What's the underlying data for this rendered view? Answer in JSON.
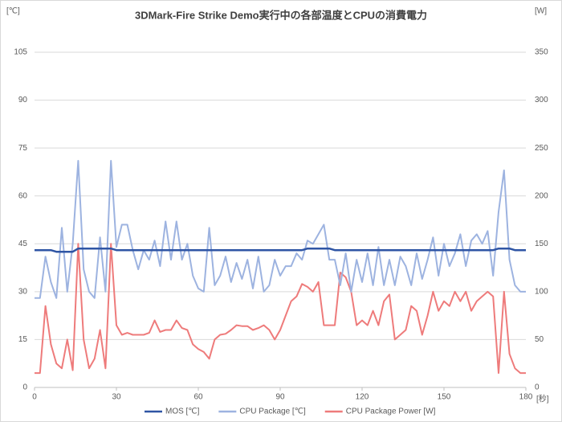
{
  "chart_data": {
    "type": "line",
    "title": "3DMark-Fire Strike Demo実行中の各部温度とCPUの消費電力",
    "ylabel": "[℃]",
    "y2label": "[W]",
    "xlabel": "[秒]",
    "x": [
      0,
      2,
      4,
      6,
      8,
      10,
      12,
      14,
      16,
      18,
      20,
      22,
      24,
      26,
      28,
      30,
      32,
      34,
      36,
      38,
      40,
      42,
      44,
      46,
      48,
      50,
      52,
      54,
      56,
      58,
      60,
      62,
      64,
      66,
      68,
      70,
      72,
      74,
      76,
      78,
      80,
      82,
      84,
      86,
      88,
      90,
      92,
      94,
      96,
      98,
      100,
      102,
      104,
      106,
      108,
      110,
      112,
      114,
      116,
      118,
      120,
      122,
      124,
      126,
      128,
      130,
      132,
      134,
      136,
      138,
      140,
      142,
      144,
      146,
      148,
      150,
      152,
      154,
      156,
      158,
      160,
      162,
      164,
      166,
      168,
      170,
      172,
      174,
      176,
      178,
      180
    ],
    "xlim": [
      0,
      180
    ],
    "xticks": [
      0,
      30,
      60,
      90,
      120,
      150,
      180
    ],
    "ylim": [
      0,
      105
    ],
    "yticks": [
      0,
      15,
      30,
      45,
      60,
      75,
      90,
      105
    ],
    "y2lim": [
      0,
      350
    ],
    "y2ticks": [
      0,
      50,
      100,
      150,
      200,
      250,
      300,
      350
    ],
    "grid": true,
    "series": [
      {
        "name": "MOS [℃]",
        "color": "#2f55a4",
        "values": [
          43,
          43,
          43,
          43,
          42.5,
          42.5,
          42.5,
          42.5,
          43.5,
          43.5,
          43.5,
          43.5,
          43.5,
          43.5,
          43.5,
          43,
          43,
          43,
          43,
          43,
          43,
          43,
          43,
          43,
          43,
          43,
          43,
          43,
          43,
          43,
          43,
          43,
          43,
          43,
          43,
          43,
          43,
          43,
          43,
          43,
          43,
          43,
          43,
          43,
          43,
          43,
          43,
          43,
          43,
          43,
          43.5,
          43.5,
          43.5,
          43.5,
          43.5,
          43,
          43,
          43,
          43,
          43,
          43,
          43,
          43,
          43,
          43,
          43,
          43,
          43,
          43,
          43,
          43,
          43,
          43,
          43,
          43,
          43,
          43,
          43,
          43,
          43,
          43,
          43,
          43,
          43,
          43,
          43.5,
          43.5,
          43.5,
          43,
          43,
          43
        ]
      },
      {
        "name": "CPU Package [℃]",
        "color": "#9db3e0",
        "values": [
          28,
          28,
          41,
          33,
          28,
          50,
          30,
          45,
          71,
          37,
          30,
          28,
          47,
          30,
          71,
          44,
          51,
          51,
          43,
          37,
          43,
          40,
          46,
          38,
          52,
          40,
          52,
          40,
          45,
          35,
          31,
          30,
          50,
          32,
          35,
          41,
          33,
          39,
          34,
          40,
          31,
          41,
          30,
          32,
          40,
          35,
          38,
          38,
          42,
          40,
          46,
          45,
          48,
          51,
          40,
          40,
          32,
          42,
          30,
          40,
          33,
          42,
          32,
          44,
          32,
          40,
          32,
          41,
          38,
          32,
          42,
          34,
          40,
          47,
          35,
          45,
          38,
          42,
          48,
          38,
          46,
          48,
          45,
          49,
          35,
          55,
          68,
          40,
          32,
          30,
          30
        ]
      },
      {
        "name": "CPU Package Power [W]",
        "color": "#ee7b7b",
        "axis": "y2",
        "values": [
          15,
          15,
          85,
          45,
          25,
          20,
          50,
          18,
          150,
          50,
          20,
          30,
          60,
          20,
          150,
          65,
          55,
          57,
          55,
          55,
          55,
          57,
          70,
          58,
          60,
          60,
          70,
          62,
          60,
          45,
          40,
          37,
          30,
          50,
          55,
          56,
          60,
          65,
          64,
          64,
          60,
          62,
          65,
          60,
          50,
          60,
          75,
          90,
          95,
          108,
          105,
          100,
          110,
          65,
          65,
          65,
          120,
          115,
          100,
          65,
          70,
          65,
          80,
          65,
          90,
          97,
          50,
          55,
          60,
          85,
          80,
          55,
          75,
          100,
          80,
          90,
          85,
          100,
          90,
          100,
          80,
          90,
          95,
          100,
          95,
          15,
          100,
          35,
          20,
          15,
          15
        ]
      }
    ]
  }
}
